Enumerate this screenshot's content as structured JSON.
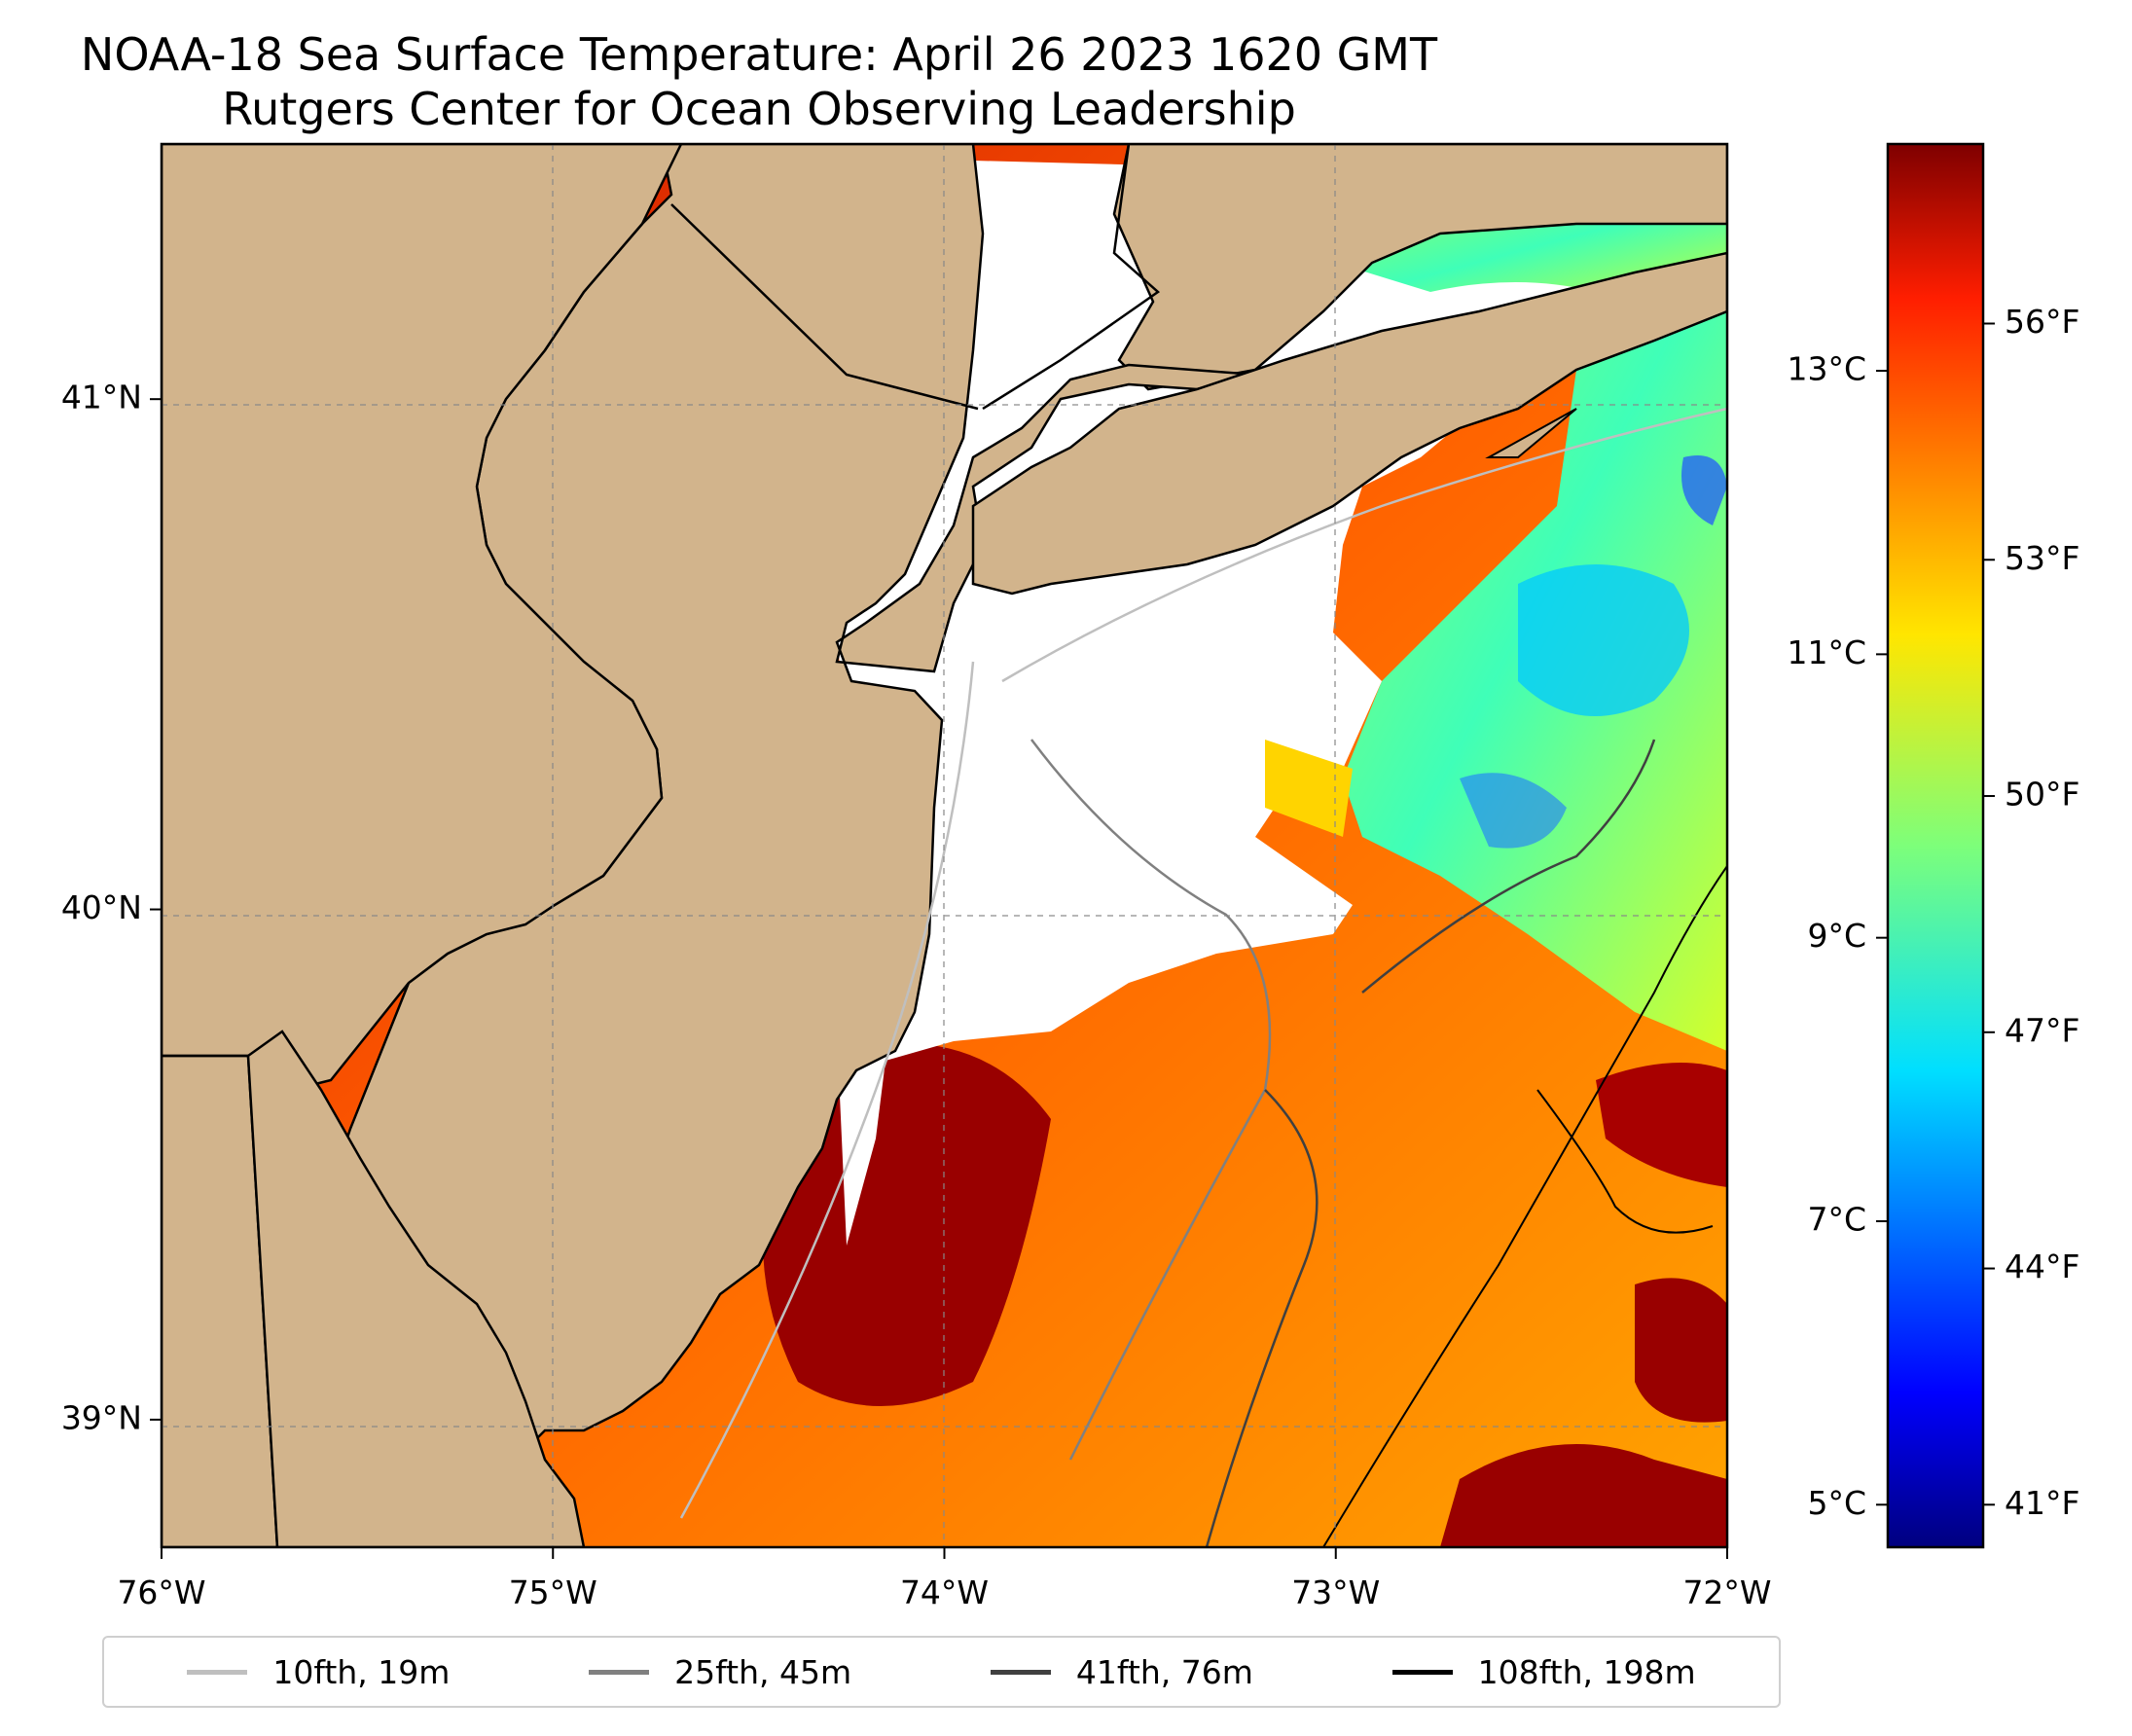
{
  "title": {
    "line1": "NOAA-18 Sea Surface Temperature: April 26 2023 1620 GMT",
    "line2": "Rutgers Center for Ocean Observing Leadership"
  },
  "map": {
    "longitude_range": [
      -76,
      -72
    ],
    "latitude_range": [
      38.75,
      41.5
    ],
    "lon_ticks": [
      {
        "value": -76,
        "label": "76°W"
      },
      {
        "value": -75,
        "label": "75°W"
      },
      {
        "value": -74,
        "label": "74°W"
      },
      {
        "value": -73,
        "label": "73°W"
      },
      {
        "value": -72,
        "label": "72°W"
      }
    ],
    "lat_ticks": [
      {
        "value": 41,
        "label": "41°N"
      },
      {
        "value": 40,
        "label": "40°N"
      },
      {
        "value": 39,
        "label": "39°N"
      }
    ],
    "land_color": "#d2b48c",
    "no_data_color": "#ffffff"
  },
  "colorbar": {
    "celsius_ticks": [
      {
        "value": 13,
        "label": "13°C"
      },
      {
        "value": 11,
        "label": "11°C"
      },
      {
        "value": 9,
        "label": "9°C"
      },
      {
        "value": 7,
        "label": "7°C"
      },
      {
        "value": 5,
        "label": "5°C"
      }
    ],
    "fahrenheit_ticks": [
      {
        "value": 56,
        "label": "56°F"
      },
      {
        "value": 53,
        "label": "53°F"
      },
      {
        "value": 50,
        "label": "50°F"
      },
      {
        "value": 47,
        "label": "47°F"
      },
      {
        "value": 44,
        "label": "44°F"
      },
      {
        "value": 41,
        "label": "41°F"
      }
    ],
    "range_celsius": [
      4.7,
      14.6
    ],
    "colormap": "jet"
  },
  "legend": {
    "items": [
      {
        "label": "10fth, 19m",
        "color": "#bfbfbf"
      },
      {
        "label": "25fth, 45m",
        "color": "#808080"
      },
      {
        "label": "41fth, 76m",
        "color": "#404040"
      },
      {
        "label": "108fth, 198m",
        "color": "#000000"
      }
    ]
  }
}
